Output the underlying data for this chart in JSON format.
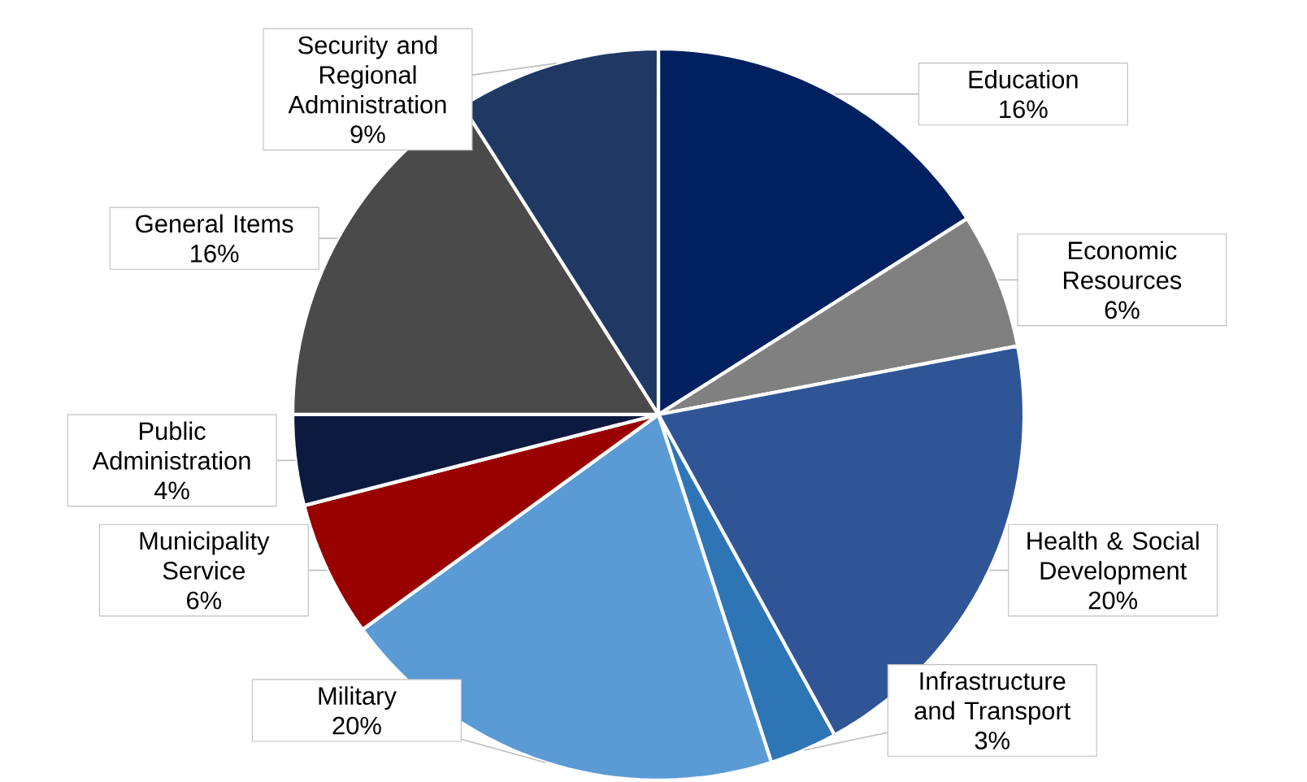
{
  "chart_data": {
    "type": "pie",
    "categories": [
      "Education",
      "Economic Resources",
      "Health & Social Development",
      "Infrastructure and Transport",
      "Military",
      "Municipality Service",
      "Public Administration",
      "General Items",
      "Security and Regional Administration"
    ],
    "values": [
      16,
      6,
      20,
      3,
      20,
      6,
      4,
      16,
      9
    ],
    "value_labels": [
      "16%",
      "6%",
      "20%",
      "3%",
      "20%",
      "6%",
      "4%",
      "16%",
      "9%"
    ],
    "colors": [
      "#002060",
      "#808080",
      "#2f5597",
      "#2e75b6",
      "#5b9bd5",
      "#990000",
      "#0c1a40",
      "#4a4a4a",
      "#1f3864"
    ]
  }
}
